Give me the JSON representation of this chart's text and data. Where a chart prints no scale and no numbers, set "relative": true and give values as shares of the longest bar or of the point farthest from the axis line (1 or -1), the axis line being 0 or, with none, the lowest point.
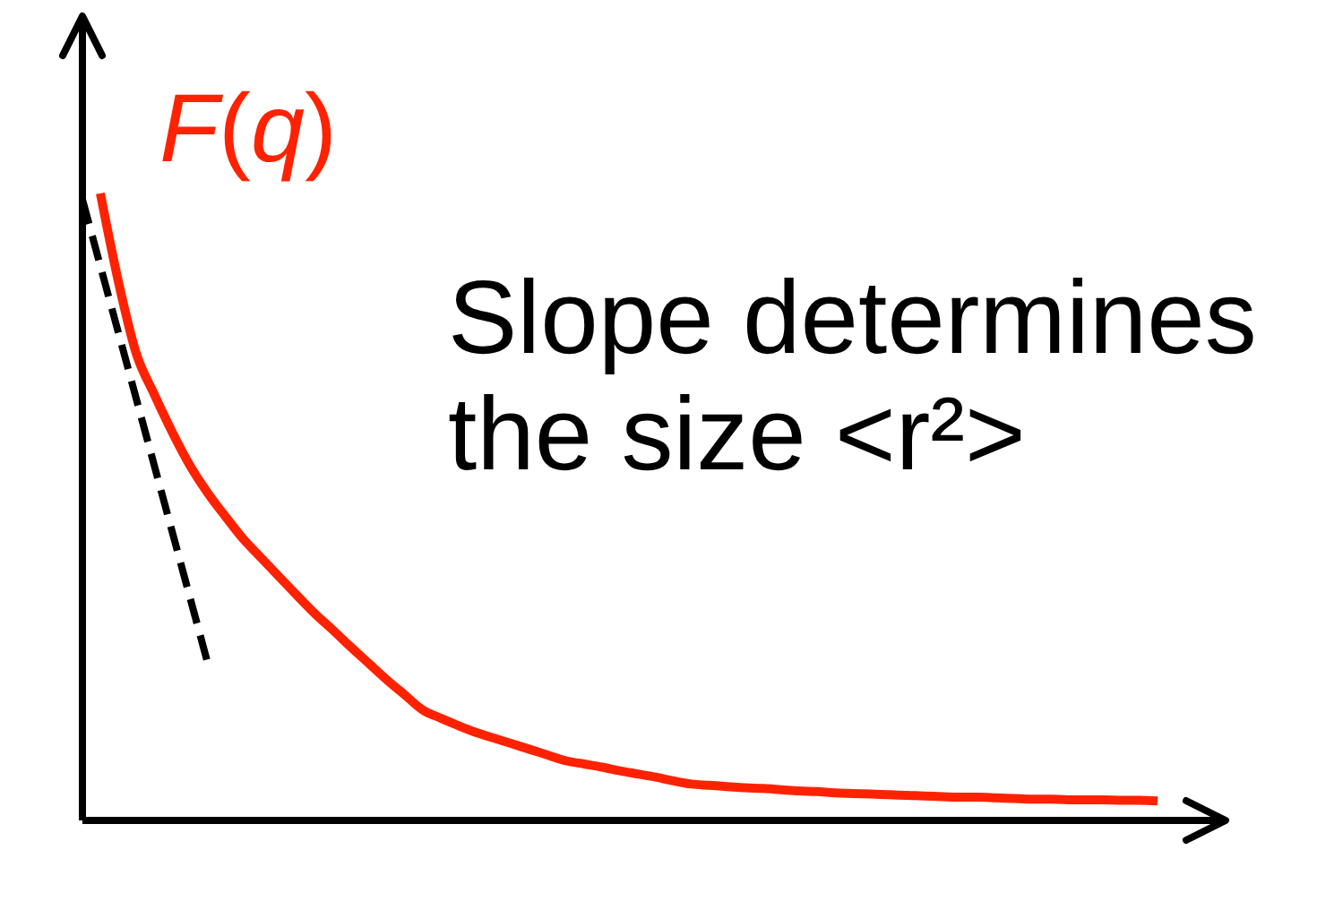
{
  "chart_data": {
    "type": "line",
    "relative": true,
    "categories": [
      null,
      null,
      null,
      null,
      null,
      null,
      null,
      null,
      null,
      null,
      null,
      null,
      null,
      null,
      null,
      null,
      null,
      null,
      null,
      null,
      null,
      null,
      null,
      null,
      null,
      null,
      null,
      null,
      null,
      null,
      null,
      null,
      null,
      null,
      null,
      null,
      null,
      null,
      null,
      null,
      null,
      null,
      null,
      null,
      null,
      null,
      null,
      null,
      null,
      null,
      null,
      null,
      null,
      null,
      null,
      null,
      null,
      null,
      null,
      null,
      null
    ],
    "series": [
      {
        "name": "F(q)",
        "color": "#ff2200",
        "values": [
          null,
          1.0,
          0.86,
          0.745,
          0.68,
          0.62,
          0.566,
          0.522,
          0.484,
          0.448,
          0.418,
          0.388,
          0.358,
          0.329,
          0.303,
          0.276,
          0.25,
          0.224,
          0.2,
          0.176,
          0.163,
          0.151,
          0.14,
          0.131,
          0.122,
          0.113,
          0.104,
          0.095,
          0.09,
          0.085,
          0.079,
          0.074,
          0.069,
          0.063,
          0.058,
          0.056,
          0.054,
          0.052,
          0.051,
          0.049,
          0.047,
          0.046,
          0.044,
          0.043,
          0.042,
          0.041,
          0.04,
          0.039,
          0.038,
          0.037,
          0.037,
          0.036,
          0.035,
          0.034,
          0.034,
          0.033,
          0.033,
          0.033,
          0.032,
          0.032,
          0.031
        ]
      },
      {
        "color": "#000000",
        "line_style": "dashed",
        "values": [
          0.99,
          null,
          null,
          null,
          null,
          null,
          null,
          0.25,
          null,
          null,
          null,
          null,
          null,
          null,
          null,
          null,
          null,
          null,
          null,
          null,
          null,
          null,
          null,
          null,
          null,
          null,
          null,
          null,
          null,
          null,
          null,
          null,
          null,
          null,
          null,
          null,
          null,
          null,
          null,
          null,
          null,
          null,
          null,
          null,
          null,
          null,
          null,
          null,
          null,
          null,
          null,
          null,
          null,
          null,
          null,
          null,
          null,
          null,
          null,
          null,
          null
        ]
      }
    ],
    "annotations": [
      "Slope determines the size <r²>"
    ]
  }
}
